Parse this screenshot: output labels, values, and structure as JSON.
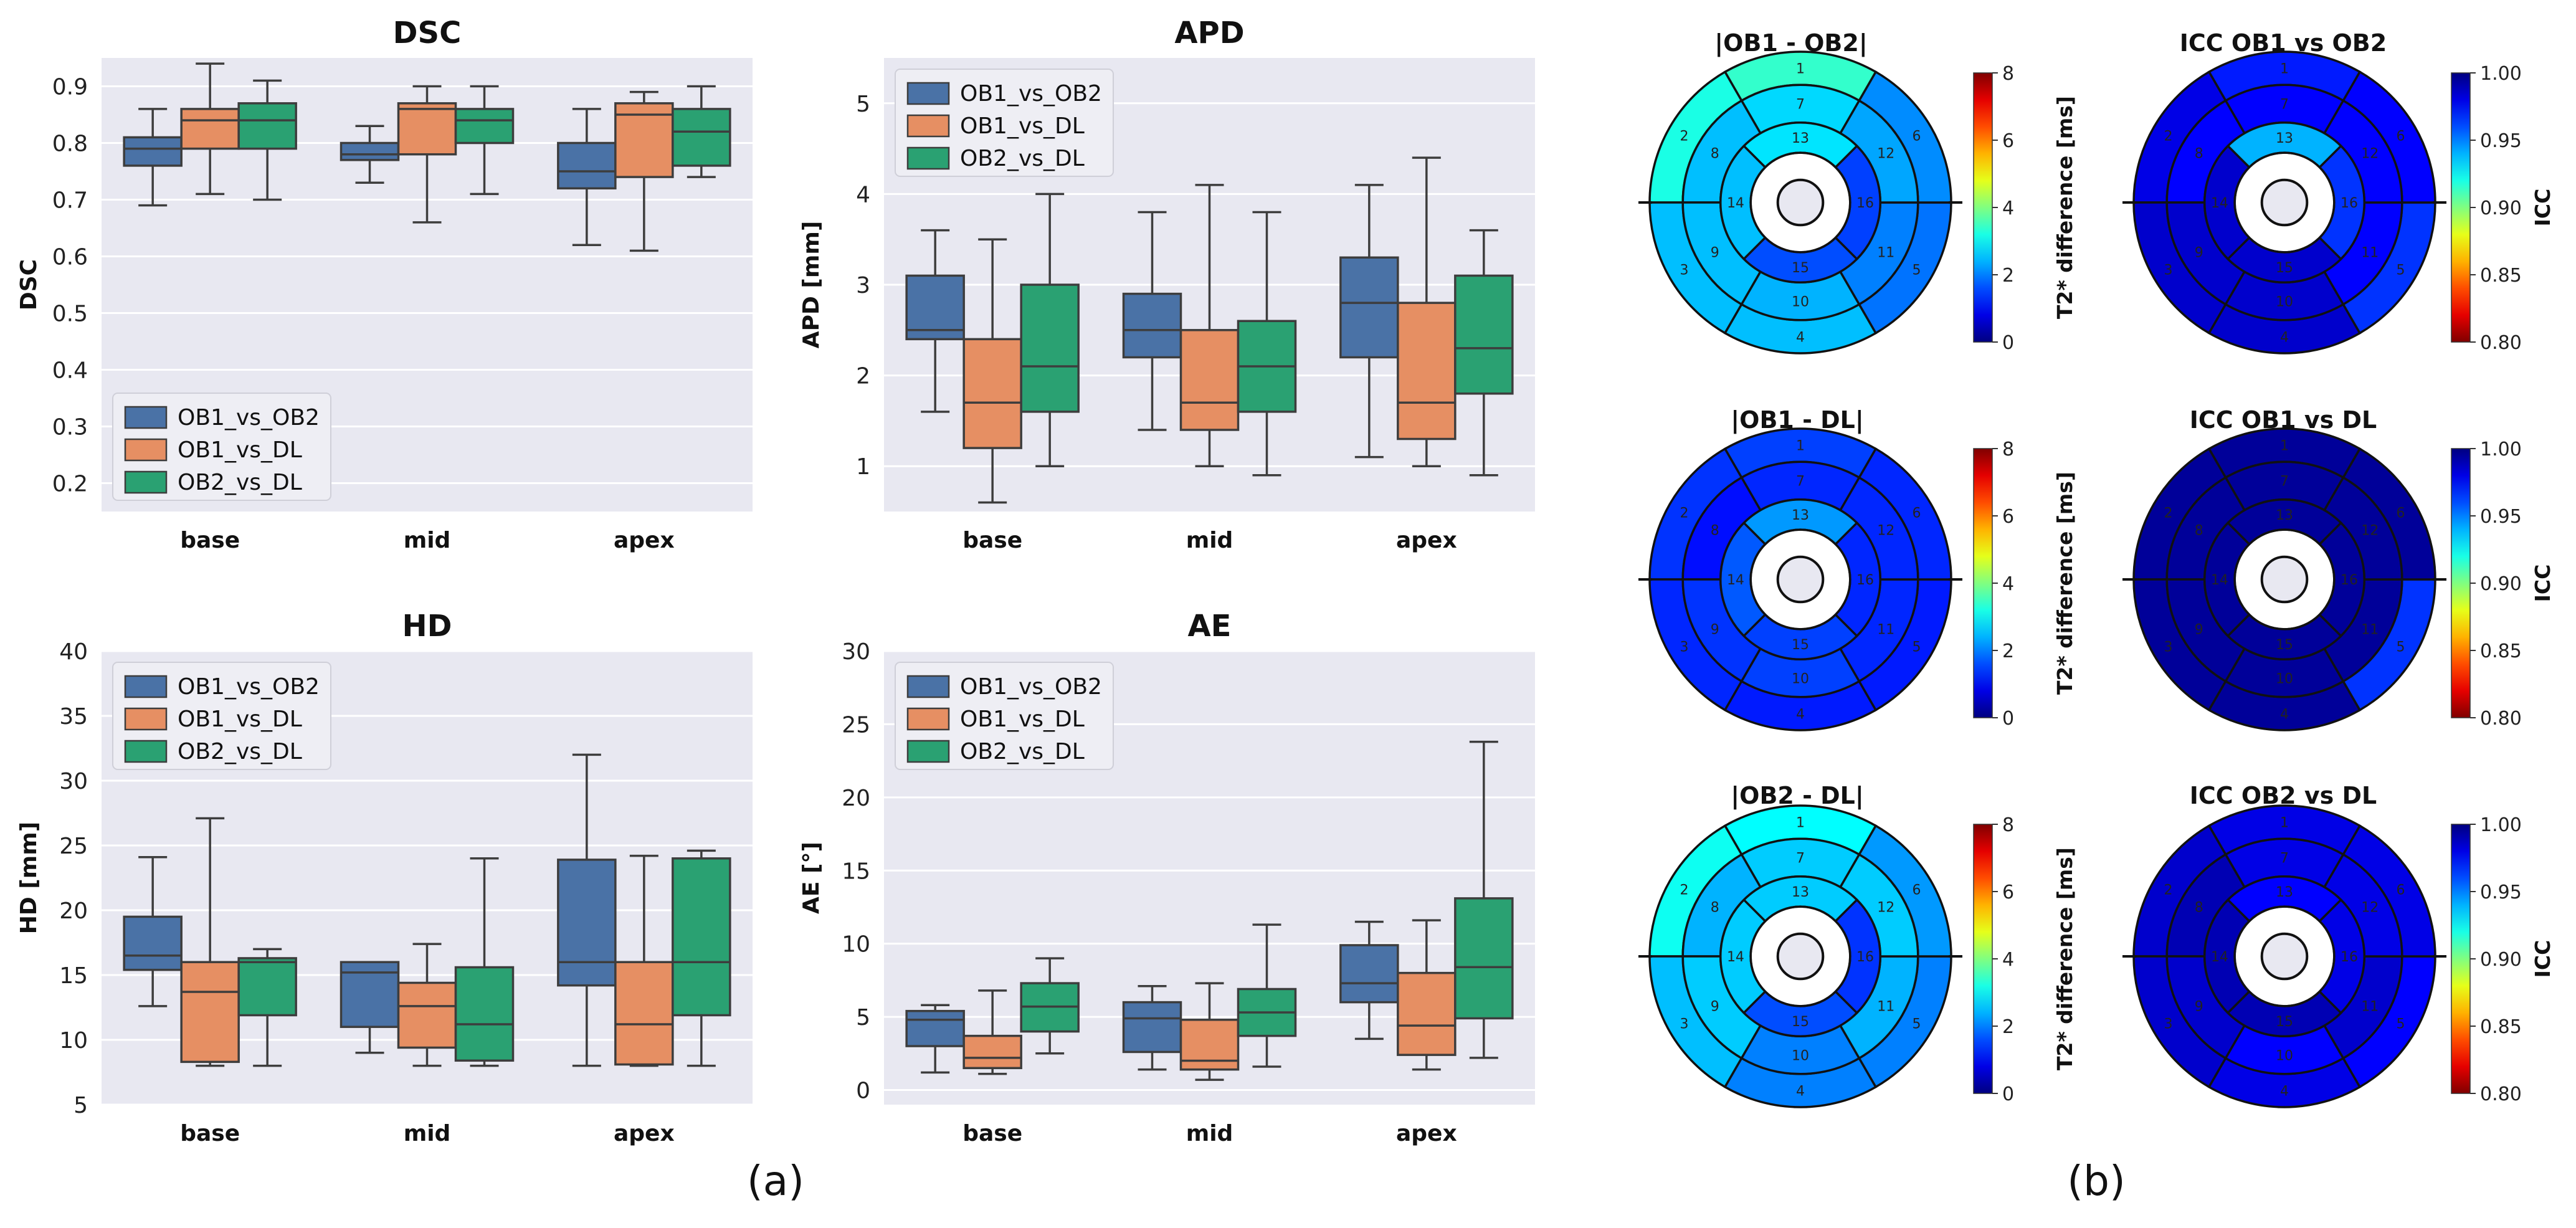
{
  "panel_labels": {
    "a": "(a)",
    "b": "(b)"
  },
  "colors": {
    "plot_bg": "#e8e8f1",
    "grid": "#ffffff",
    "whisker": "#3d3d3d",
    "ob1_ob2": "#4a72a6",
    "ob1_dl": "#e68f63",
    "ob2_dl": "#2aa172"
  },
  "chart_data": [
    {
      "id": "dsc",
      "type": "box",
      "title": "DSC",
      "xlabel": "",
      "ylabel": "DSC",
      "ylim": [
        0.15,
        0.95
      ],
      "yticks": [
        0.2,
        0.3,
        0.4,
        0.5,
        0.6,
        0.7,
        0.8,
        0.9
      ],
      "categories": [
        "base",
        "mid",
        "apex"
      ],
      "legend": [
        "OB1_vs_OB2",
        "OB1_vs_DL",
        "OB2_vs_DL"
      ],
      "legend_loc": "lower-left",
      "series": [
        {
          "name": "OB1_vs_OB2",
          "color_key": "ob1_ob2",
          "boxes": [
            [
              0.69,
              0.76,
              0.79,
              0.81,
              0.86
            ],
            [
              0.73,
              0.77,
              0.78,
              0.8,
              0.83
            ],
            [
              0.62,
              0.72,
              0.75,
              0.8,
              0.86
            ]
          ]
        },
        {
          "name": "OB1_vs_DL",
          "color_key": "ob1_dl",
          "boxes": [
            [
              0.71,
              0.79,
              0.84,
              0.86,
              0.94
            ],
            [
              0.66,
              0.78,
              0.86,
              0.87,
              0.9
            ],
            [
              0.61,
              0.74,
              0.85,
              0.87,
              0.89
            ]
          ]
        },
        {
          "name": "OB2_vs_DL",
          "color_key": "ob2_dl",
          "boxes": [
            [
              0.7,
              0.79,
              0.84,
              0.87,
              0.91
            ],
            [
              0.71,
              0.8,
              0.84,
              0.86,
              0.9
            ],
            [
              0.74,
              0.76,
              0.82,
              0.86,
              0.9
            ]
          ]
        }
      ]
    },
    {
      "id": "apd",
      "type": "box",
      "title": "APD",
      "xlabel": "",
      "ylabel": "APD [mm]",
      "ylim": [
        0.5,
        5.5
      ],
      "yticks": [
        1,
        2,
        3,
        4,
        5
      ],
      "categories": [
        "base",
        "mid",
        "apex"
      ],
      "legend": [
        "OB1_vs_OB2",
        "OB1_vs_DL",
        "OB2_vs_DL"
      ],
      "legend_loc": "upper-left",
      "series": [
        {
          "name": "OB1_vs_OB2",
          "color_key": "ob1_ob2",
          "boxes": [
            [
              1.6,
              2.4,
              2.5,
              3.1,
              3.6
            ],
            [
              1.4,
              2.2,
              2.5,
              2.9,
              3.8
            ],
            [
              1.1,
              2.2,
              2.8,
              3.3,
              4.1
            ]
          ]
        },
        {
          "name": "OB1_vs_DL",
          "color_key": "ob1_dl",
          "boxes": [
            [
              0.6,
              1.2,
              1.7,
              2.4,
              3.5
            ],
            [
              1.0,
              1.4,
              1.7,
              2.5,
              4.1
            ],
            [
              1.0,
              1.3,
              1.7,
              2.8,
              4.4
            ]
          ]
        },
        {
          "name": "OB2_vs_DL",
          "color_key": "ob2_dl",
          "boxes": [
            [
              1.0,
              1.6,
              2.1,
              3.0,
              4.0
            ],
            [
              0.9,
              1.6,
              2.1,
              2.6,
              3.8
            ],
            [
              0.9,
              1.8,
              2.3,
              3.1,
              3.6
            ]
          ]
        }
      ]
    },
    {
      "id": "hd",
      "type": "box",
      "title": "HD",
      "xlabel": "",
      "ylabel": "HD [mm]",
      "ylim": [
        5,
        40
      ],
      "yticks": [
        5,
        10,
        15,
        20,
        25,
        30,
        35,
        40
      ],
      "categories": [
        "base",
        "mid",
        "apex"
      ],
      "legend": [
        "OB1_vs_OB2",
        "OB1_vs_DL",
        "OB2_vs_DL"
      ],
      "legend_loc": "upper-left",
      "series": [
        {
          "name": "OB1_vs_OB2",
          "color_key": "ob1_ob2",
          "boxes": [
            [
              12.6,
              15.4,
              16.5,
              19.5,
              24.1
            ],
            [
              9.0,
              11.0,
              15.2,
              16.0,
              16.0
            ],
            [
              8.0,
              14.2,
              16.0,
              23.9,
              32.0
            ]
          ]
        },
        {
          "name": "OB1_vs_DL",
          "color_key": "ob1_dl",
          "boxes": [
            [
              8.0,
              8.3,
              13.7,
              16.0,
              27.1
            ],
            [
              8.0,
              9.4,
              12.6,
              14.4,
              17.4
            ],
            [
              8.0,
              8.1,
              11.2,
              16.0,
              24.2
            ]
          ]
        },
        {
          "name": "OB2_vs_DL",
          "color_key": "ob2_dl",
          "boxes": [
            [
              8.0,
              11.9,
              16.0,
              16.3,
              17.0
            ],
            [
              8.0,
              8.4,
              11.2,
              15.6,
              24.0
            ],
            [
              8.0,
              11.9,
              16.0,
              24.0,
              24.6
            ]
          ]
        }
      ]
    },
    {
      "id": "ae",
      "type": "box",
      "title": "AE",
      "xlabel": "",
      "ylabel": "AE [°]",
      "ylim": [
        -1,
        30
      ],
      "yticks": [
        0,
        5,
        10,
        15,
        20,
        25,
        30
      ],
      "categories": [
        "base",
        "mid",
        "apex"
      ],
      "legend": [
        "OB1_vs_OB2",
        "OB1_vs_DL",
        "OB2_vs_DL"
      ],
      "legend_loc": "upper-left",
      "series": [
        {
          "name": "OB1_vs_OB2",
          "color_key": "ob1_ob2",
          "boxes": [
            [
              1.2,
              3.0,
              4.8,
              5.4,
              5.8
            ],
            [
              1.4,
              2.6,
              4.9,
              6.0,
              7.1
            ],
            [
              3.5,
              6.0,
              7.3,
              9.9,
              11.5
            ]
          ]
        },
        {
          "name": "OB1_vs_DL",
          "color_key": "ob1_dl",
          "boxes": [
            [
              1.1,
              1.5,
              2.2,
              3.7,
              6.8
            ],
            [
              0.7,
              1.4,
              2.0,
              4.8,
              7.3
            ],
            [
              1.4,
              2.4,
              4.4,
              8.0,
              11.6
            ]
          ]
        },
        {
          "name": "OB2_vs_DL",
          "color_key": "ob2_dl",
          "boxes": [
            [
              2.5,
              4.0,
              5.7,
              7.3,
              9.0
            ],
            [
              1.6,
              3.7,
              5.3,
              6.9,
              11.3
            ],
            [
              2.2,
              4.9,
              8.4,
              13.1,
              23.8
            ]
          ]
        }
      ]
    },
    {
      "id": "bull_ob1_ob2_diff",
      "type": "heatmap",
      "subtype": "polar-bullseye",
      "title": "|OB1 - OB2|",
      "colorbar_label": "T2* difference [ms]",
      "colormap": "jet",
      "vmin": 0,
      "vmax": 8,
      "cbar_ticks": [
        0,
        2,
        4,
        6,
        8
      ],
      "cbar_tick_labels": [
        "0",
        "2",
        "4",
        "6",
        "8"
      ],
      "segments": [
        1,
        2,
        3,
        4,
        5,
        6,
        7,
        8,
        9,
        10,
        11,
        12,
        13,
        14,
        15,
        16
      ],
      "values": [
        3.4,
        3.2,
        2.5,
        2.5,
        1.9,
        2.1,
        2.7,
        2.5,
        2.5,
        2.4,
        2.0,
        2.3,
        2.8,
        2.5,
        1.6,
        1.5
      ]
    },
    {
      "id": "bull_icc_ob1_ob2",
      "type": "heatmap",
      "subtype": "polar-bullseye",
      "title": "ICC OB1 vs OB2",
      "colorbar_label": "ICC",
      "colormap": "jet_r",
      "vmin": 0.8,
      "vmax": 1.0,
      "cbar_ticks": [
        0.8,
        0.85,
        0.9,
        0.95,
        1.0
      ],
      "cbar_tick_labels": [
        "0.80",
        "0.85",
        "0.90",
        "0.95",
        "1.00"
      ],
      "segments": [
        1,
        2,
        3,
        4,
        5,
        6,
        7,
        8,
        9,
        10,
        11,
        12,
        13,
        14,
        15,
        16
      ],
      "values": [
        0.97,
        0.98,
        0.985,
        0.985,
        0.965,
        0.975,
        0.975,
        0.975,
        0.985,
        0.985,
        0.975,
        0.975,
        0.94,
        0.985,
        0.985,
        0.965
      ]
    },
    {
      "id": "bull_ob1_dl_diff",
      "type": "heatmap",
      "subtype": "polar-bullseye",
      "title": "|OB1 - DL|",
      "colorbar_label": "T2* difference [ms]",
      "colormap": "jet",
      "vmin": 0,
      "vmax": 8,
      "cbar_ticks": [
        0,
        2,
        4,
        6,
        8
      ],
      "cbar_tick_labels": [
        "0",
        "2",
        "4",
        "6",
        "8"
      ],
      "segments": [
        1,
        2,
        3,
        4,
        5,
        6,
        7,
        8,
        9,
        10,
        11,
        12,
        13,
        14,
        15,
        16
      ],
      "values": [
        1.5,
        1.4,
        1.3,
        1.2,
        1.2,
        1.3,
        1.3,
        1.1,
        1.4,
        1.5,
        1.3,
        1.3,
        2.2,
        1.7,
        1.5,
        1.3
      ]
    },
    {
      "id": "bull_icc_ob1_dl",
      "type": "heatmap",
      "subtype": "polar-bullseye",
      "title": "ICC OB1 vs DL",
      "colorbar_label": "ICC",
      "colormap": "jet_r",
      "vmin": 0.8,
      "vmax": 1.0,
      "cbar_ticks": [
        0.8,
        0.85,
        0.9,
        0.95,
        1.0
      ],
      "cbar_tick_labels": [
        "0.80",
        "0.85",
        "0.90",
        "0.95",
        "1.00"
      ],
      "segments": [
        1,
        2,
        3,
        4,
        5,
        6,
        7,
        8,
        9,
        10,
        11,
        12,
        13,
        14,
        15,
        16
      ],
      "values": [
        0.995,
        0.995,
        0.995,
        0.995,
        0.965,
        0.995,
        0.995,
        0.995,
        0.995,
        0.995,
        0.995,
        0.995,
        0.995,
        0.995,
        0.995,
        0.995
      ]
    },
    {
      "id": "bull_ob2_dl_diff",
      "type": "heatmap",
      "subtype": "polar-bullseye",
      "title": "|OB2 - DL|",
      "colorbar_label": "T2* difference [ms]",
      "colormap": "jet",
      "vmin": 0,
      "vmax": 8,
      "cbar_ticks": [
        0,
        2,
        4,
        6,
        8
      ],
      "cbar_tick_labels": [
        "0",
        "2",
        "4",
        "6",
        "8"
      ],
      "segments": [
        1,
        2,
        3,
        4,
        5,
        6,
        7,
        8,
        9,
        10,
        11,
        12,
        13,
        14,
        15,
        16
      ],
      "values": [
        3.0,
        3.1,
        2.5,
        2.0,
        2.0,
        2.2,
        2.6,
        2.4,
        2.6,
        2.0,
        2.4,
        2.6,
        2.6,
        2.6,
        1.6,
        1.4
      ]
    },
    {
      "id": "bull_icc_ob2_dl",
      "type": "heatmap",
      "subtype": "polar-bullseye",
      "title": "ICC OB2 vs DL",
      "colorbar_label": "ICC",
      "colormap": "jet_r",
      "vmin": 0.8,
      "vmax": 1.0,
      "cbar_ticks": [
        0.8,
        0.85,
        0.9,
        0.95,
        1.0
      ],
      "cbar_tick_labels": [
        "0.80",
        "0.85",
        "0.90",
        "0.95",
        "1.00"
      ],
      "segments": [
        1,
        2,
        3,
        4,
        5,
        6,
        7,
        8,
        9,
        10,
        11,
        12,
        13,
        14,
        15,
        16
      ],
      "values": [
        0.98,
        0.985,
        0.985,
        0.98,
        0.975,
        0.98,
        0.98,
        0.99,
        0.985,
        0.975,
        0.985,
        0.98,
        0.975,
        0.99,
        0.99,
        0.98
      ]
    }
  ]
}
